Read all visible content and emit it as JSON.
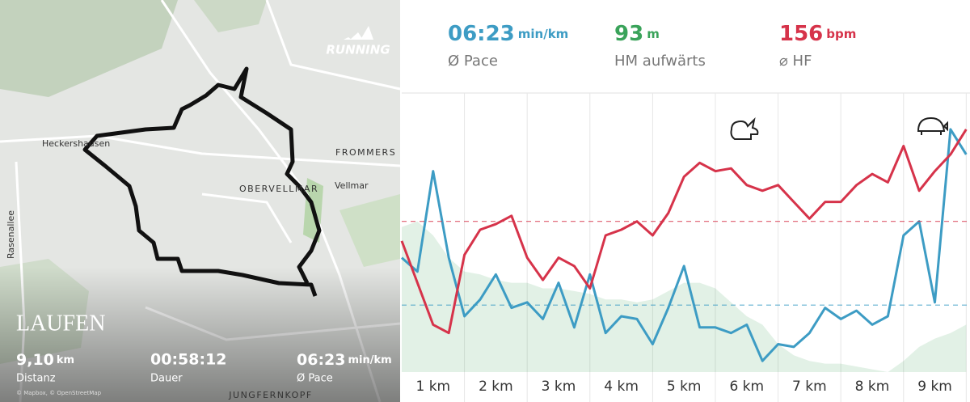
{
  "stats": [
    {
      "value": "06:23",
      "unit": "min/km",
      "label": "Ø Pace",
      "color": "#3d9cc4"
    },
    {
      "value": "93",
      "unit": "m",
      "label": "HM aufwärts",
      "color": "#3aa35a"
    },
    {
      "value": "156",
      "unit": "bpm",
      "label": "⌀ HF",
      "color": "#d6334a"
    }
  ],
  "map": {
    "brand": "RUNNING",
    "places": [
      "Heckershausen",
      "FROMMERS",
      "OBERVELLMAR",
      "Vellmar",
      "Rasenallee",
      "JUNGFERNKOPF"
    ],
    "activity": "LAUFEN",
    "metrics": [
      {
        "value": "9,10",
        "unit": "km",
        "label": "Distanz"
      },
      {
        "value": "00:58:12",
        "label": "Dauer"
      },
      {
        "value": "06:23",
        "unit": "min/km",
        "label": "Ø Pace"
      }
    ],
    "attribution": "© Mapbox, © OpenStreetMap"
  },
  "chart_data": {
    "type": "line",
    "x": [
      0,
      0.25,
      0.5,
      0.75,
      1,
      1.25,
      1.5,
      1.75,
      2,
      2.25,
      2.5,
      2.75,
      3,
      3.25,
      3.5,
      3.75,
      4,
      4.25,
      4.5,
      4.75,
      5,
      5.25,
      5.5,
      5.75,
      6,
      6.25,
      6.5,
      6.75,
      7,
      7.25,
      7.5,
      7.75,
      8,
      8.25,
      8.5,
      8.75,
      9
    ],
    "xlim": [
      0,
      9.06
    ],
    "ylim": [
      0,
      100
    ],
    "xticks": [
      {
        "value": 1,
        "label": "1 km"
      },
      {
        "value": 2,
        "label": "2 km"
      },
      {
        "value": 3,
        "label": "3 km"
      },
      {
        "value": 4,
        "label": "4 km"
      },
      {
        "value": 5,
        "label": "5 km"
      },
      {
        "value": 6,
        "label": "6 km"
      },
      {
        "value": 7,
        "label": "7 km"
      },
      {
        "value": 8,
        "label": "8 km"
      },
      {
        "value": 9,
        "label": "9 km"
      }
    ],
    "series": [
      {
        "name": "HM",
        "color": "#3aa35a",
        "fill": true,
        "values": [
          52,
          54,
          49,
          41,
          36,
          35,
          33,
          32,
          32,
          30,
          30,
          29,
          28,
          26,
          26,
          25,
          26,
          29,
          32,
          32,
          30,
          25,
          20,
          17,
          10,
          6,
          4,
          3,
          3,
          2,
          1,
          0,
          4,
          9,
          12,
          14,
          17
        ]
      },
      {
        "name": "Pace",
        "color": "#3d9cc4",
        "average": 24,
        "values": [
          41,
          36,
          72,
          41,
          20,
          26,
          35,
          23,
          25,
          19,
          32,
          16,
          35,
          14,
          20,
          19,
          10,
          23,
          38,
          16,
          16,
          14,
          17,
          4,
          10,
          9,
          14,
          23,
          19,
          22,
          17,
          20,
          49,
          54,
          25,
          87,
          78
        ]
      },
      {
        "name": "HF",
        "color": "#d6334a",
        "average": 54,
        "values": [
          47,
          32,
          17,
          14,
          42,
          51,
          53,
          56,
          41,
          33,
          41,
          38,
          30,
          49,
          51,
          54,
          49,
          57,
          70,
          75,
          72,
          73,
          67,
          65,
          67,
          61,
          55,
          61,
          61,
          67,
          71,
          68,
          81,
          65,
          72,
          78,
          87
        ]
      }
    ]
  }
}
